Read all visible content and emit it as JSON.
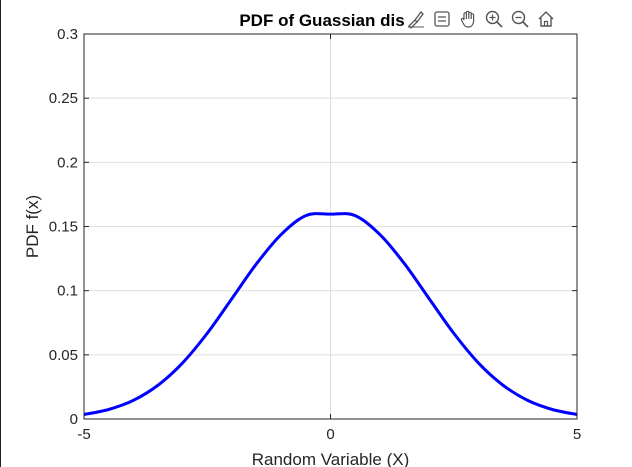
{
  "chart_data": {
    "type": "line",
    "title": "PDF of Guassian distri",
    "xlabel": "Random Variable (X)",
    "ylabel": "PDF f(x)",
    "xlim": [
      -5,
      5
    ],
    "ylim": [
      0,
      0.3
    ],
    "xticks": [
      -5,
      0,
      5
    ],
    "xtick_labels": [
      "-5",
      "0",
      "5"
    ],
    "yticks": [
      0,
      0.05,
      0.1,
      0.15,
      0.2,
      0.25,
      0.3
    ],
    "ytick_labels": [
      "0",
      "0.05",
      "0.1",
      "0.15",
      "0.2",
      "0.25",
      "0.3"
    ],
    "grid": true,
    "series": [
      {
        "color": "#0000ff",
        "x": [
          -5,
          -4.5,
          -4,
          -3.5,
          -3,
          -2.5,
          -2,
          -1.5,
          -1,
          -0.5,
          0,
          0.5,
          1,
          1.5,
          2,
          2.5,
          3,
          3.5,
          4,
          4.5,
          5
        ],
        "y": [
          0.0035,
          0.0074,
          0.0145,
          0.0263,
          0.0437,
          0.0668,
          0.0938,
          0.121,
          0.1438,
          0.1585,
          0.1596,
          0.1585,
          0.1438,
          0.121,
          0.0938,
          0.0668,
          0.0437,
          0.0263,
          0.0145,
          0.0074,
          0.0035
        ]
      }
    ]
  },
  "toolbar": {
    "icons": [
      "brush-icon",
      "data-tips-icon",
      "pan-icon",
      "zoom-in-icon",
      "zoom-out-icon",
      "home-icon"
    ]
  }
}
